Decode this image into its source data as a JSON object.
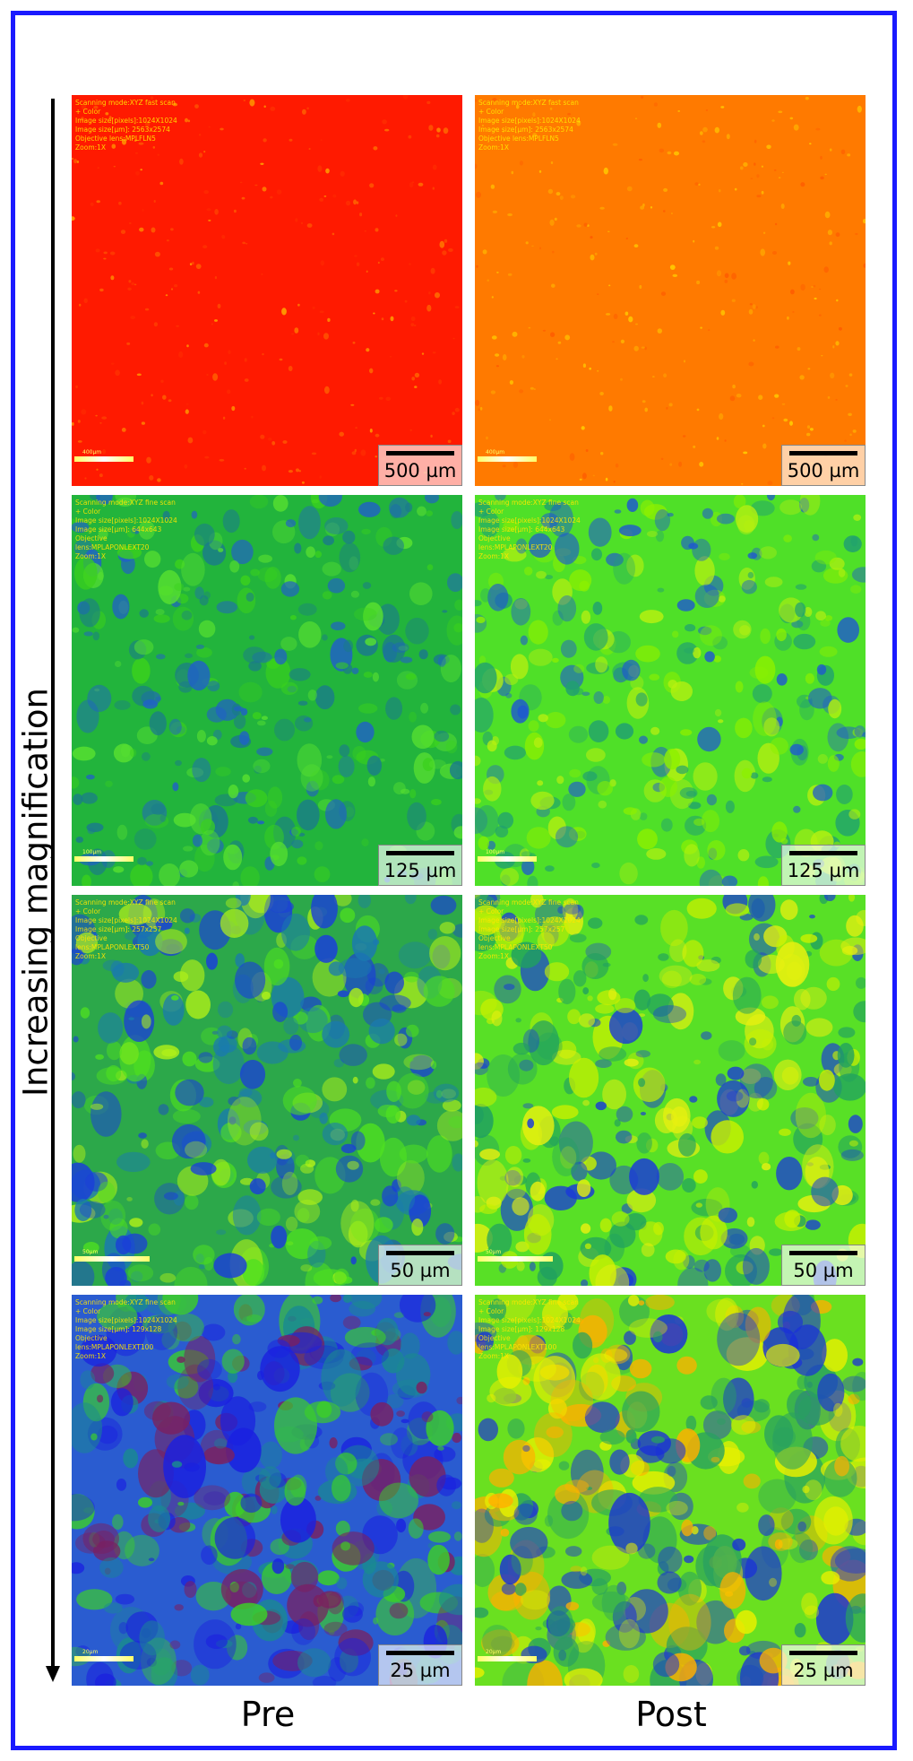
{
  "axis_label": "Increasing magnification",
  "columns": [
    "Pre",
    "Post"
  ],
  "rows": [
    {
      "scale_bar": "500 µm",
      "pre": {
        "bg": "#ff1a00",
        "palette": [
          "#ff3300",
          "#ff6600",
          "#ffaa00"
        ],
        "meta": "Scanning mode:XYZ fast scan\n+ Color\nImage size[pixels]:1024X1024\nImage size[µm]: 2563x2574\nObjective lens:MPLFLN5\nZoom:1X",
        "mini": "400µm"
      },
      "post": {
        "bg": "#ff7a00",
        "palette": [
          "#ffb000",
          "#ff5a00",
          "#ffd200"
        ],
        "meta": "Scanning mode:XYZ fast scan\n+ Color\nImage size[pixels]:1024X1024\nImage size[µm]: 2563x2574\nObjective lens:MPLFLN5\nZoom:1X",
        "mini": "400µm"
      }
    },
    {
      "scale_bar": "125 µm",
      "pre": {
        "bg": "#22b43c",
        "palette": [
          "#1a7a8c",
          "#3ad11c",
          "#2060c8",
          "#58e030"
        ],
        "meta": "Scanning mode:XYZ fine scan\n+ Color\nImage size[pixels]:1024X1024\nImage size[µm]: 644x643\nObjective\nlens:MPLAPONLEXT20\nZoom:1X",
        "mini": "100µm"
      },
      "post": {
        "bg": "#4fe028",
        "palette": [
          "#8cf000",
          "#20a070",
          "#1e58d0",
          "#b8f010"
        ],
        "meta": "Scanning mode:XYZ fine scan\n+ Color\nImage size[pixels]:1024X1024\nImage size[µm]: 644x643\nObjective\nlens:MPLAPONLEXT20\nZoom:1X",
        "mini": "100µm"
      }
    },
    {
      "scale_bar": "50 µm",
      "pre": {
        "bg": "#2ca84a",
        "palette": [
          "#1a3fd8",
          "#4ee020",
          "#1a7ab0",
          "#b0f018"
        ],
        "meta": "Scanning mode:XYZ fine scan\n+ Color\nImage size[pixels]:1024X1024\nImage size[µm]: 257x257\nObjective\nlens:MPLAPONLEXT50\nZoom:1X",
        "mini": "50µm"
      },
      "post": {
        "bg": "#58e026",
        "palette": [
          "#c8f000",
          "#1a3ad8",
          "#20a060",
          "#e8f010"
        ],
        "meta": "Scanning mode:XYZ fine scan\n+ Color\nImage size[pixels]:1024X1024\nImage size[µm]: 257x257\nObjective\nlens:MPLAPONLEXT50\nZoom:1X",
        "mini": "50µm"
      }
    },
    {
      "scale_bar": "25 µm",
      "pre": {
        "bg": "#2a5cd0",
        "palette": [
          "#1a20e0",
          "#3ccf28",
          "#1a8a90",
          "#7a2060"
        ],
        "meta": "Scanning mode:XYZ fine scan\n+ Color\nImage size[pixels]:1024X1024\nImage size[µm]: 129x128\nObjective\nlens:MPLAPONLEXT100\nZoom:1X",
        "mini": "20µm"
      },
      "post": {
        "bg": "#6ae020",
        "palette": [
          "#e8f000",
          "#1a30d8",
          "#ffb000",
          "#28a060"
        ],
        "meta": "Scanning mode:XYZ fine scan\n+ Color\nImage size[pixels]:1024X1024\nImage size[µm]: 129x128\nObjective\nlens:MPLAPONLEXT100\nZoom:1X",
        "mini": "20µm"
      }
    }
  ]
}
